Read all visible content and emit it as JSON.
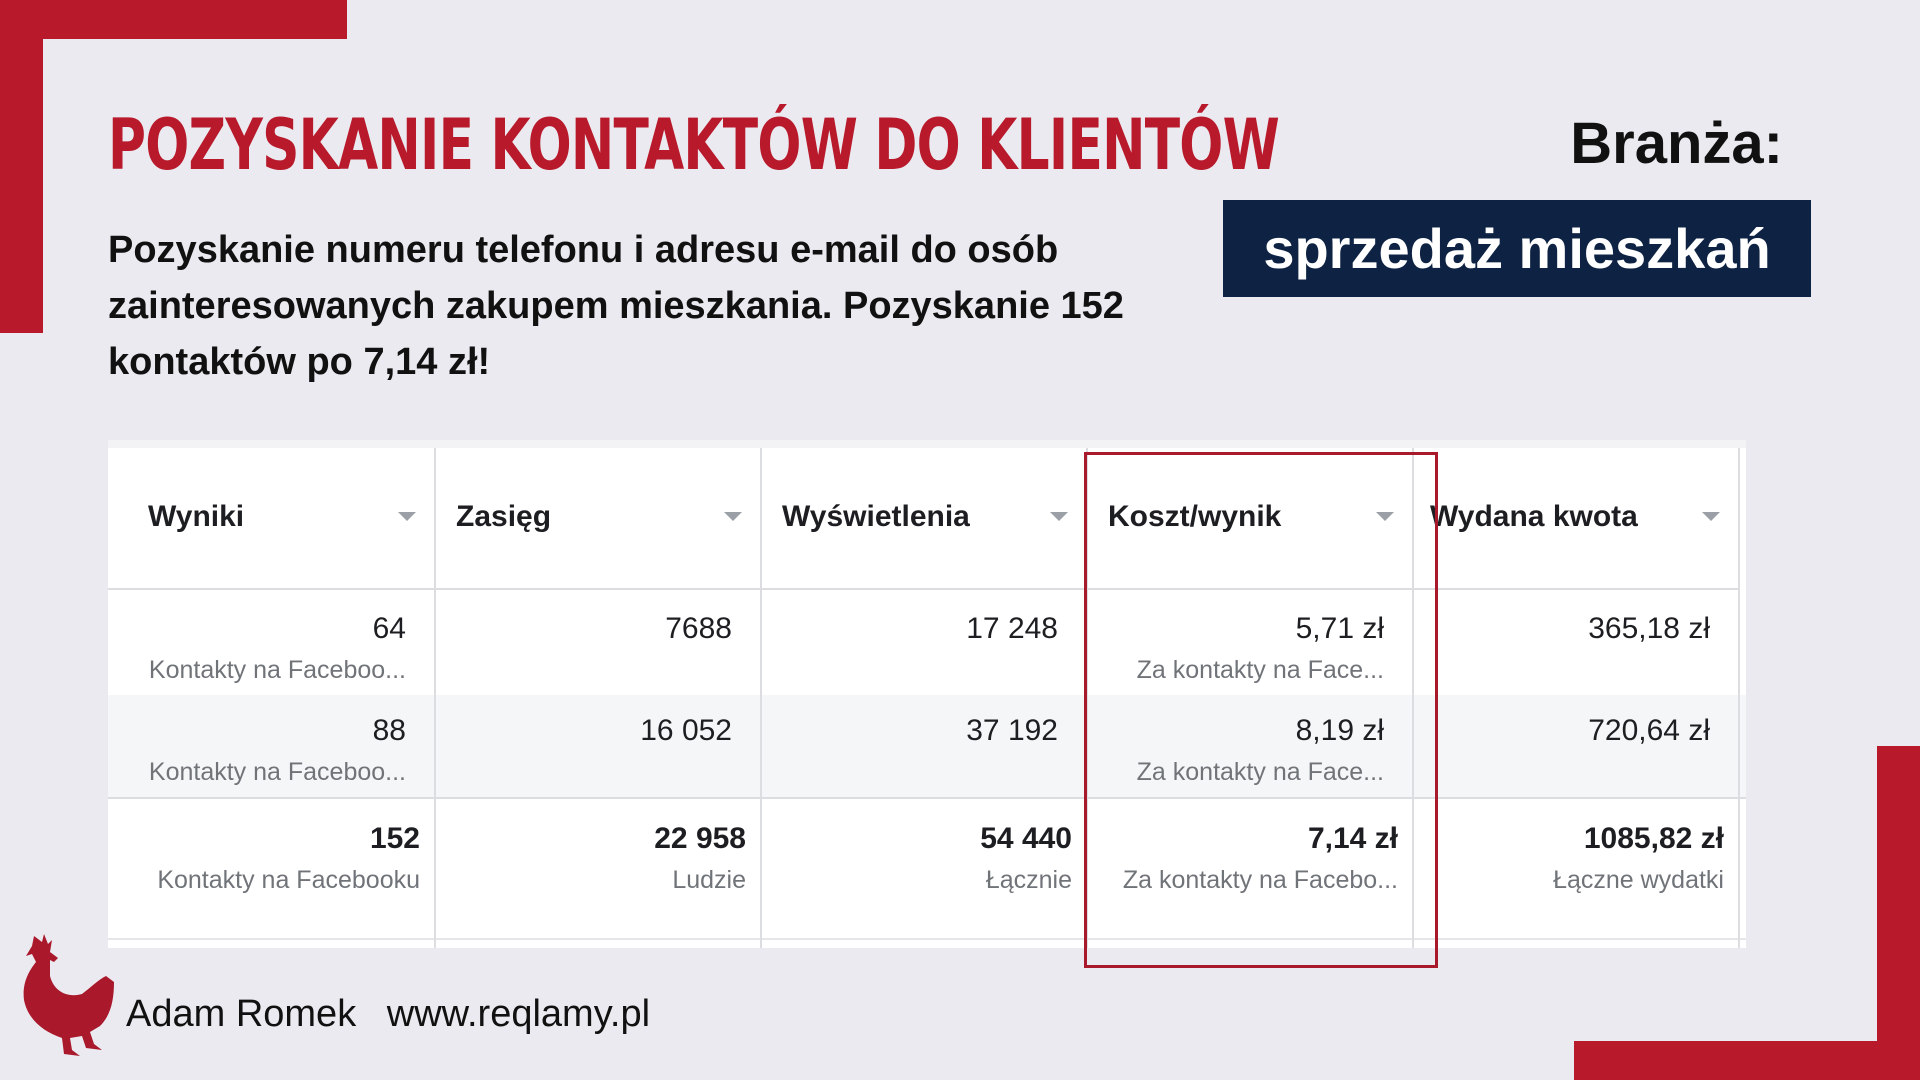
{
  "title": "Pozyskanie kontaktów do klientów",
  "subtitle": "Pozyskanie numeru telefonu i adresu e-mail do osób zainteresowanych zakupem mieszkania. Pozyskanie 152 kontaktów po 7,14 zł!",
  "branza": {
    "label": "Branża:",
    "value": "sprzedaż mieszkań"
  },
  "table": {
    "columns": [
      "Wyniki",
      "Zasięg",
      "Wyświetlenia",
      "Koszt/wynik",
      "Wydana kwota"
    ],
    "rows": [
      {
        "wyniki": "64",
        "wyniki_sub": "Kontakty na Faceboo...",
        "zasieg": "7688",
        "wyswietlenia": "17 248",
        "koszt": "5,71 zł",
        "koszt_sub": "Za kontakty na Face...",
        "kwota": "365,18 zł"
      },
      {
        "wyniki": "88",
        "wyniki_sub": "Kontakty na Faceboo...",
        "zasieg": "16 052",
        "wyswietlenia": "37 192",
        "koszt": "8,19 zł",
        "koszt_sub": "Za kontakty na Face...",
        "kwota": "720,64 zł"
      }
    ],
    "totals": {
      "wyniki": "152",
      "wyniki_sub": "Kontakty na Facebooku",
      "zasieg": "22 958",
      "zasieg_sub": "Ludzie",
      "wyswietlenia": "54 440",
      "wyswietlenia_sub": "Łącznie",
      "koszt": "7,14 zł",
      "koszt_sub": "Za kontakty na Facebo...",
      "kwota": "1085,82 zł",
      "kwota_sub": "Łączne wydatki"
    }
  },
  "footer": {
    "author": "Adam Romek",
    "website": "www.reqlamy.pl"
  },
  "colors": {
    "accent": "#b8192b",
    "navy": "#0e2343",
    "background": "#ebeaf0"
  },
  "icons": {
    "logo": "rooster-logo-icon",
    "sort": "sort-triangle-icon"
  }
}
